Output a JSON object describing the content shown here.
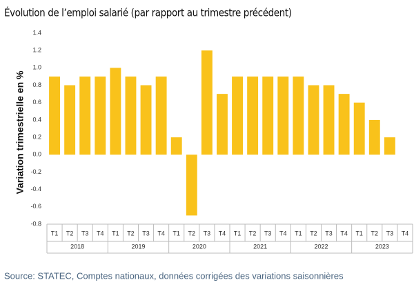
{
  "chart_data": {
    "type": "bar",
    "title": "Évolution de l’emploi salarié (par rapport au trimestre précédent)",
    "y_label": "Variation trimestrielle en %",
    "source": "Source: STATEC, Comptes nationaux, données corrigées des variations saisonnières",
    "categories": [
      "T1",
      "T2",
      "T3",
      "T4",
      "T1",
      "T2",
      "T3",
      "T4",
      "T1",
      "T2",
      "T3",
      "T4",
      "T1",
      "T2",
      "T3",
      "T4",
      "T1",
      "T2",
      "T3",
      "T4",
      "T1",
      "T2",
      "T3",
      "T4"
    ],
    "years": [
      "2018",
      "2019",
      "2020",
      "2021",
      "2022",
      "2023"
    ],
    "values": [
      0.9,
      0.8,
      0.9,
      0.9,
      1.0,
      0.9,
      0.8,
      0.9,
      0.2,
      -0.7,
      1.2,
      0.7,
      0.9,
      0.9,
      0.9,
      0.9,
      0.9,
      0.8,
      0.8,
      0.7,
      0.6,
      0.4,
      0.2,
      null
    ],
    "color": "#f9c21b",
    "ylim": [
      -0.8,
      1.4
    ],
    "yticks": [
      -0.8,
      -0.6,
      -0.4,
      -0.2,
      {
        "value": 0,
        "label": "0.0"
      },
      0.2,
      0.4,
      0.6,
      0.8,
      {
        "value": 1,
        "label": "1.0"
      },
      1.2,
      1.4
    ],
    "grid": false
  }
}
